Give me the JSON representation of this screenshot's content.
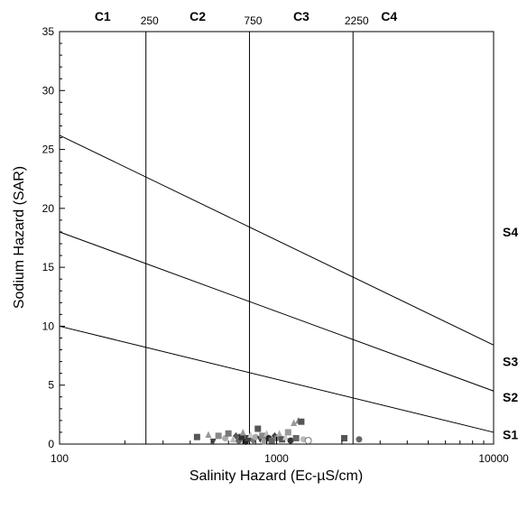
{
  "chart_data": {
    "type": "scatter",
    "title": "",
    "xlabel": "Salinity Hazard (Ec-µS/cm)",
    "ylabel": "Sodium Hazard (SAR)",
    "x_scale": "log",
    "xlim": [
      100,
      10000
    ],
    "ylim": [
      0,
      35
    ],
    "x_ticks": [
      {
        "value": 100,
        "label": "100"
      },
      {
        "value": 1000,
        "label": "1000"
      },
      {
        "value": 10000,
        "label": "10000"
      }
    ],
    "y_ticks": [
      {
        "value": 0,
        "label": "0"
      },
      {
        "value": 5,
        "label": "5"
      },
      {
        "value": 10,
        "label": "10"
      },
      {
        "value": 15,
        "label": "15"
      },
      {
        "value": 20,
        "label": "20"
      },
      {
        "value": 25,
        "label": "25"
      },
      {
        "value": 30,
        "label": "30"
      },
      {
        "value": 35,
        "label": "35"
      }
    ],
    "salinity_boundaries": [
      {
        "value": 250,
        "label": "250"
      },
      {
        "value": 750,
        "label": "750"
      },
      {
        "value": 2250,
        "label": "2250"
      }
    ],
    "salinity_classes": [
      {
        "label": "C1",
        "x": 158
      },
      {
        "label": "C2",
        "x": 433
      },
      {
        "label": "C3",
        "x": 1300
      },
      {
        "label": "C4",
        "x": 3300
      }
    ],
    "sodium_lines": [
      {
        "x": [
          100,
          10000
        ],
        "y": [
          10,
          1
        ]
      },
      {
        "x": [
          100,
          10000
        ],
        "y": [
          18,
          4.5
        ]
      },
      {
        "x": [
          100,
          10000
        ],
        "y": [
          26.2,
          8.4
        ]
      }
    ],
    "sodium_classes": [
      {
        "label": "S1",
        "y": 0.8
      },
      {
        "label": "S2",
        "y": 4.0
      },
      {
        "label": "S3",
        "y": 7.0
      },
      {
        "label": "S4",
        "y": 18.0
      }
    ],
    "points": [
      {
        "x": 430,
        "y": 0.6,
        "shape": "square",
        "color": "#555555"
      },
      {
        "x": 485,
        "y": 0.8,
        "shape": "triangle",
        "color": "#999999"
      },
      {
        "x": 510,
        "y": 0.2,
        "shape": "triangle-down",
        "color": "#444444"
      },
      {
        "x": 540,
        "y": 0.7,
        "shape": "square",
        "color": "#888888"
      },
      {
        "x": 580,
        "y": 0.5,
        "shape": "circle",
        "color": "#aaaaaa"
      },
      {
        "x": 600,
        "y": 0.9,
        "shape": "square",
        "color": "#777777"
      },
      {
        "x": 630,
        "y": 0.4,
        "shape": "triangle",
        "color": "#bbbbbb"
      },
      {
        "x": 650,
        "y": 0.7,
        "shape": "diamond",
        "color": "#555555"
      },
      {
        "x": 670,
        "y": 0.3,
        "shape": "circle",
        "color": "#666666"
      },
      {
        "x": 690,
        "y": 0.6,
        "shape": "square",
        "color": "#333333"
      },
      {
        "x": 700,
        "y": 1.0,
        "shape": "triangle",
        "color": "#999999"
      },
      {
        "x": 720,
        "y": 0.2,
        "shape": "circle",
        "color": "#222222"
      },
      {
        "x": 740,
        "y": 0.5,
        "shape": "square",
        "color": "#444444"
      },
      {
        "x": 760,
        "y": 0.8,
        "shape": "triangle",
        "color": "#cccccc"
      },
      {
        "x": 780,
        "y": 0.3,
        "shape": "diamond",
        "color": "#777777"
      },
      {
        "x": 800,
        "y": 0.6,
        "shape": "circle",
        "color": "#aaaaaa"
      },
      {
        "x": 820,
        "y": 1.3,
        "shape": "square",
        "color": "#555555"
      },
      {
        "x": 840,
        "y": 0.4,
        "shape": "triangle-down",
        "color": "#333333"
      },
      {
        "x": 860,
        "y": 0.7,
        "shape": "square",
        "color": "#888888"
      },
      {
        "x": 880,
        "y": 0.2,
        "shape": "circle",
        "color": "#999999"
      },
      {
        "x": 900,
        "y": 0.9,
        "shape": "triangle",
        "color": "#bbbbbb"
      },
      {
        "x": 920,
        "y": 0.5,
        "shape": "circle",
        "color": "#222222"
      },
      {
        "x": 950,
        "y": 0.3,
        "shape": "square",
        "color": "#666666"
      },
      {
        "x": 980,
        "y": 0.7,
        "shape": "diamond",
        "color": "#444444"
      },
      {
        "x": 1000,
        "y": 0.5,
        "shape": "circle",
        "color": "#777777"
      },
      {
        "x": 1030,
        "y": 0.9,
        "shape": "triangle",
        "color": "#aaaaaa"
      },
      {
        "x": 1060,
        "y": 0.4,
        "shape": "square",
        "color": "#555555"
      },
      {
        "x": 1100,
        "y": 0.6,
        "shape": "triangle",
        "color": "#cccccc"
      },
      {
        "x": 1130,
        "y": 1.0,
        "shape": "square",
        "color": "#999999"
      },
      {
        "x": 1160,
        "y": 0.3,
        "shape": "circle",
        "color": "#333333"
      },
      {
        "x": 1200,
        "y": 1.8,
        "shape": "triangle",
        "color": "#999999"
      },
      {
        "x": 1230,
        "y": 0.5,
        "shape": "square",
        "color": "#666666"
      },
      {
        "x": 1260,
        "y": 2.0,
        "shape": "triangle",
        "color": "#888888"
      },
      {
        "x": 1300,
        "y": 1.9,
        "shape": "square",
        "color": "#555555"
      },
      {
        "x": 1330,
        "y": 0.4,
        "shape": "circle",
        "color": "#bbbbbb"
      },
      {
        "x": 1400,
        "y": 0.3,
        "shape": "circle-open",
        "color": "#777777"
      },
      {
        "x": 2050,
        "y": 0.5,
        "shape": "square",
        "color": "#555555"
      },
      {
        "x": 2400,
        "y": 0.4,
        "shape": "circle",
        "color": "#666666"
      }
    ]
  }
}
